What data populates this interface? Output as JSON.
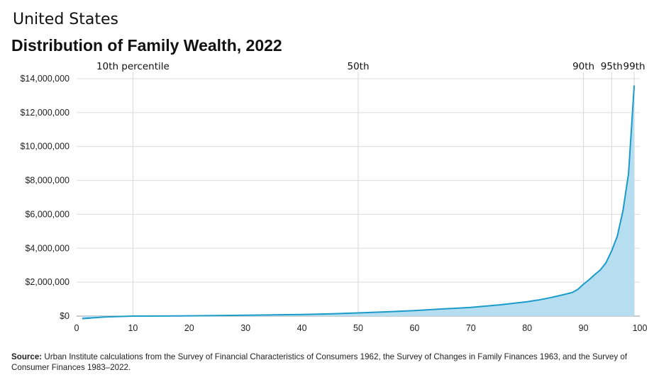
{
  "header": {
    "country": "United States",
    "title": "Distribution of Family Wealth, 2022"
  },
  "footer": {
    "source_label": "Source:",
    "source_text": "Urban Institute calculations from the Survey of Financial Characteristics of Consumers 1962, the Survey of Changes in Family Finances 1963, and the Survey of Consumer Finances 1983–2022."
  },
  "chart_data": {
    "type": "area",
    "title": "Distribution of Family Wealth, 2022",
    "xlabel": "",
    "ylabel": "",
    "xlim": [
      0,
      100
    ],
    "ylim": [
      0,
      14000000
    ],
    "x_ticks": [
      0,
      10,
      20,
      30,
      40,
      50,
      60,
      70,
      80,
      90,
      100
    ],
    "y_ticks": [
      0,
      2000000,
      4000000,
      6000000,
      8000000,
      10000000,
      12000000,
      14000000
    ],
    "y_tick_labels": [
      "$0",
      "$2,000,000",
      "$4,000,000",
      "$6,000,000",
      "$8,000,000",
      "$10,000,000",
      "$12,000,000",
      "$14,000,000"
    ],
    "grid": "horizontal",
    "line_color": "#1a9bc9",
    "fill_color": "#b7ddf0",
    "reference_lines": [
      {
        "x": 10,
        "label": "10th percentile"
      },
      {
        "x": 50,
        "label": "50th"
      },
      {
        "x": 90,
        "label": "90th"
      },
      {
        "x": 95,
        "label": "95th"
      },
      {
        "x": 99,
        "label": "99th"
      }
    ],
    "x": [
      1,
      5,
      10,
      15,
      20,
      25,
      30,
      35,
      40,
      45,
      50,
      55,
      60,
      65,
      70,
      75,
      80,
      82,
      84,
      86,
      88,
      89,
      90,
      91,
      92,
      93,
      94,
      95,
      96,
      97,
      98,
      99
    ],
    "values": [
      -150000,
      -50000,
      0,
      5000,
      15000,
      30000,
      50000,
      70000,
      95000,
      130000,
      190000,
      250000,
      320000,
      420000,
      510000,
      660000,
      850000,
      950000,
      1080000,
      1230000,
      1390000,
      1580000,
      1880000,
      2150000,
      2450000,
      2720000,
      3150000,
      3850000,
      4700000,
      6200000,
      8400000,
      13600000
    ]
  }
}
